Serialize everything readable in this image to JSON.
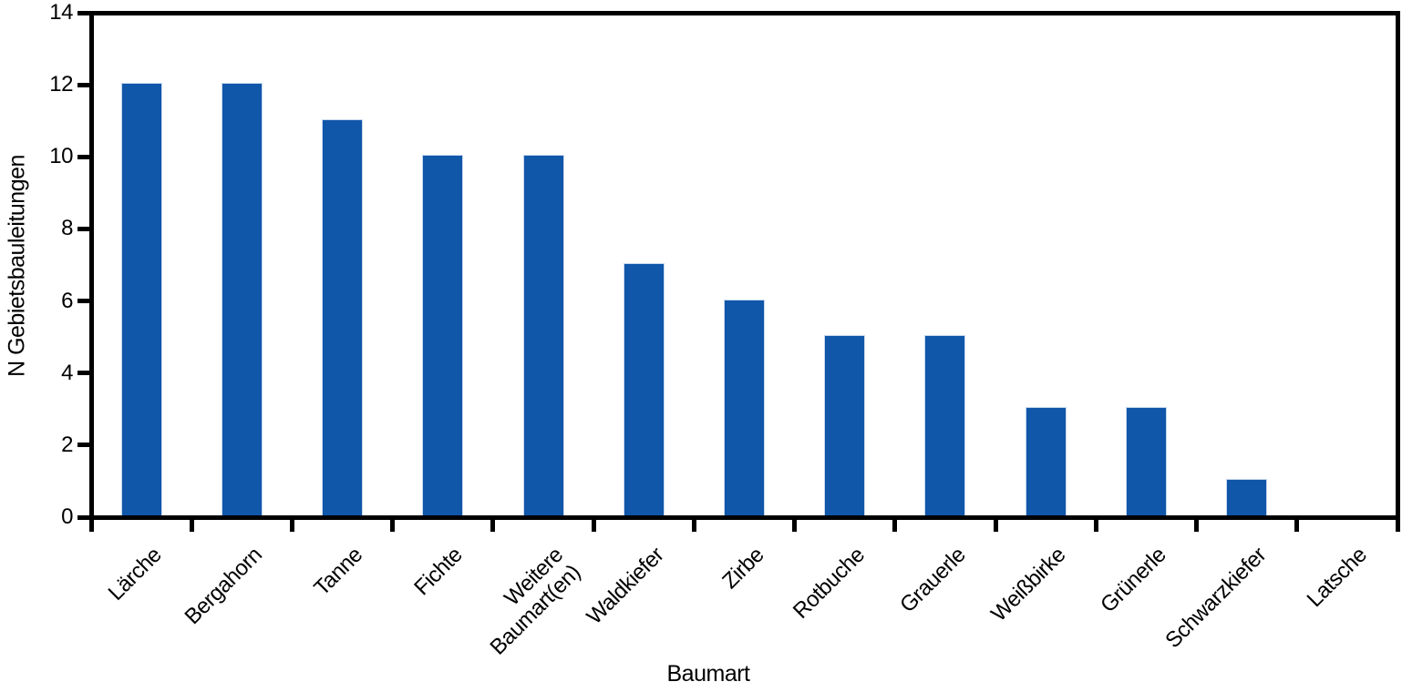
{
  "chart_data": {
    "type": "bar",
    "title": "",
    "xlabel": "Baumart",
    "ylabel": "N Gebietsbauleitungen",
    "categories": [
      "Lärche",
      "Bergahorn",
      "Tanne",
      "Fichte",
      "Weitere Baumart(en)",
      "Waldkiefer",
      "Zirbe",
      "Rotbuche",
      "Grauerle",
      "Weißbirke",
      "Grünerle",
      "Schwarzkiefer",
      "Latsche"
    ],
    "category_display_lines": [
      [
        "Lärche"
      ],
      [
        "Bergahorn"
      ],
      [
        "Tanne"
      ],
      [
        "Fichte"
      ],
      [
        "Weitere",
        "Baumart(en)"
      ],
      [
        "Waldkiefer"
      ],
      [
        "Zirbe"
      ],
      [
        "Rotbuche"
      ],
      [
        "Grauerle"
      ],
      [
        "Weißbirke"
      ],
      [
        "Grünerle"
      ],
      [
        "Schwarzkiefer"
      ],
      [
        "Latsche"
      ]
    ],
    "values": [
      12,
      12,
      11,
      10,
      10,
      7,
      6,
      5,
      5,
      3,
      3,
      1,
      0
    ],
    "ylim": [
      0,
      14
    ],
    "yticks": [
      0,
      2,
      4,
      6,
      8,
      10,
      12,
      14
    ],
    "grid": false,
    "legend": null,
    "colors": {
      "bar_fill": "#1056A9",
      "bar_edge": "#C7D8EE",
      "axis": "#000000",
      "text": "#000000",
      "background": "#FFFFFF"
    }
  }
}
